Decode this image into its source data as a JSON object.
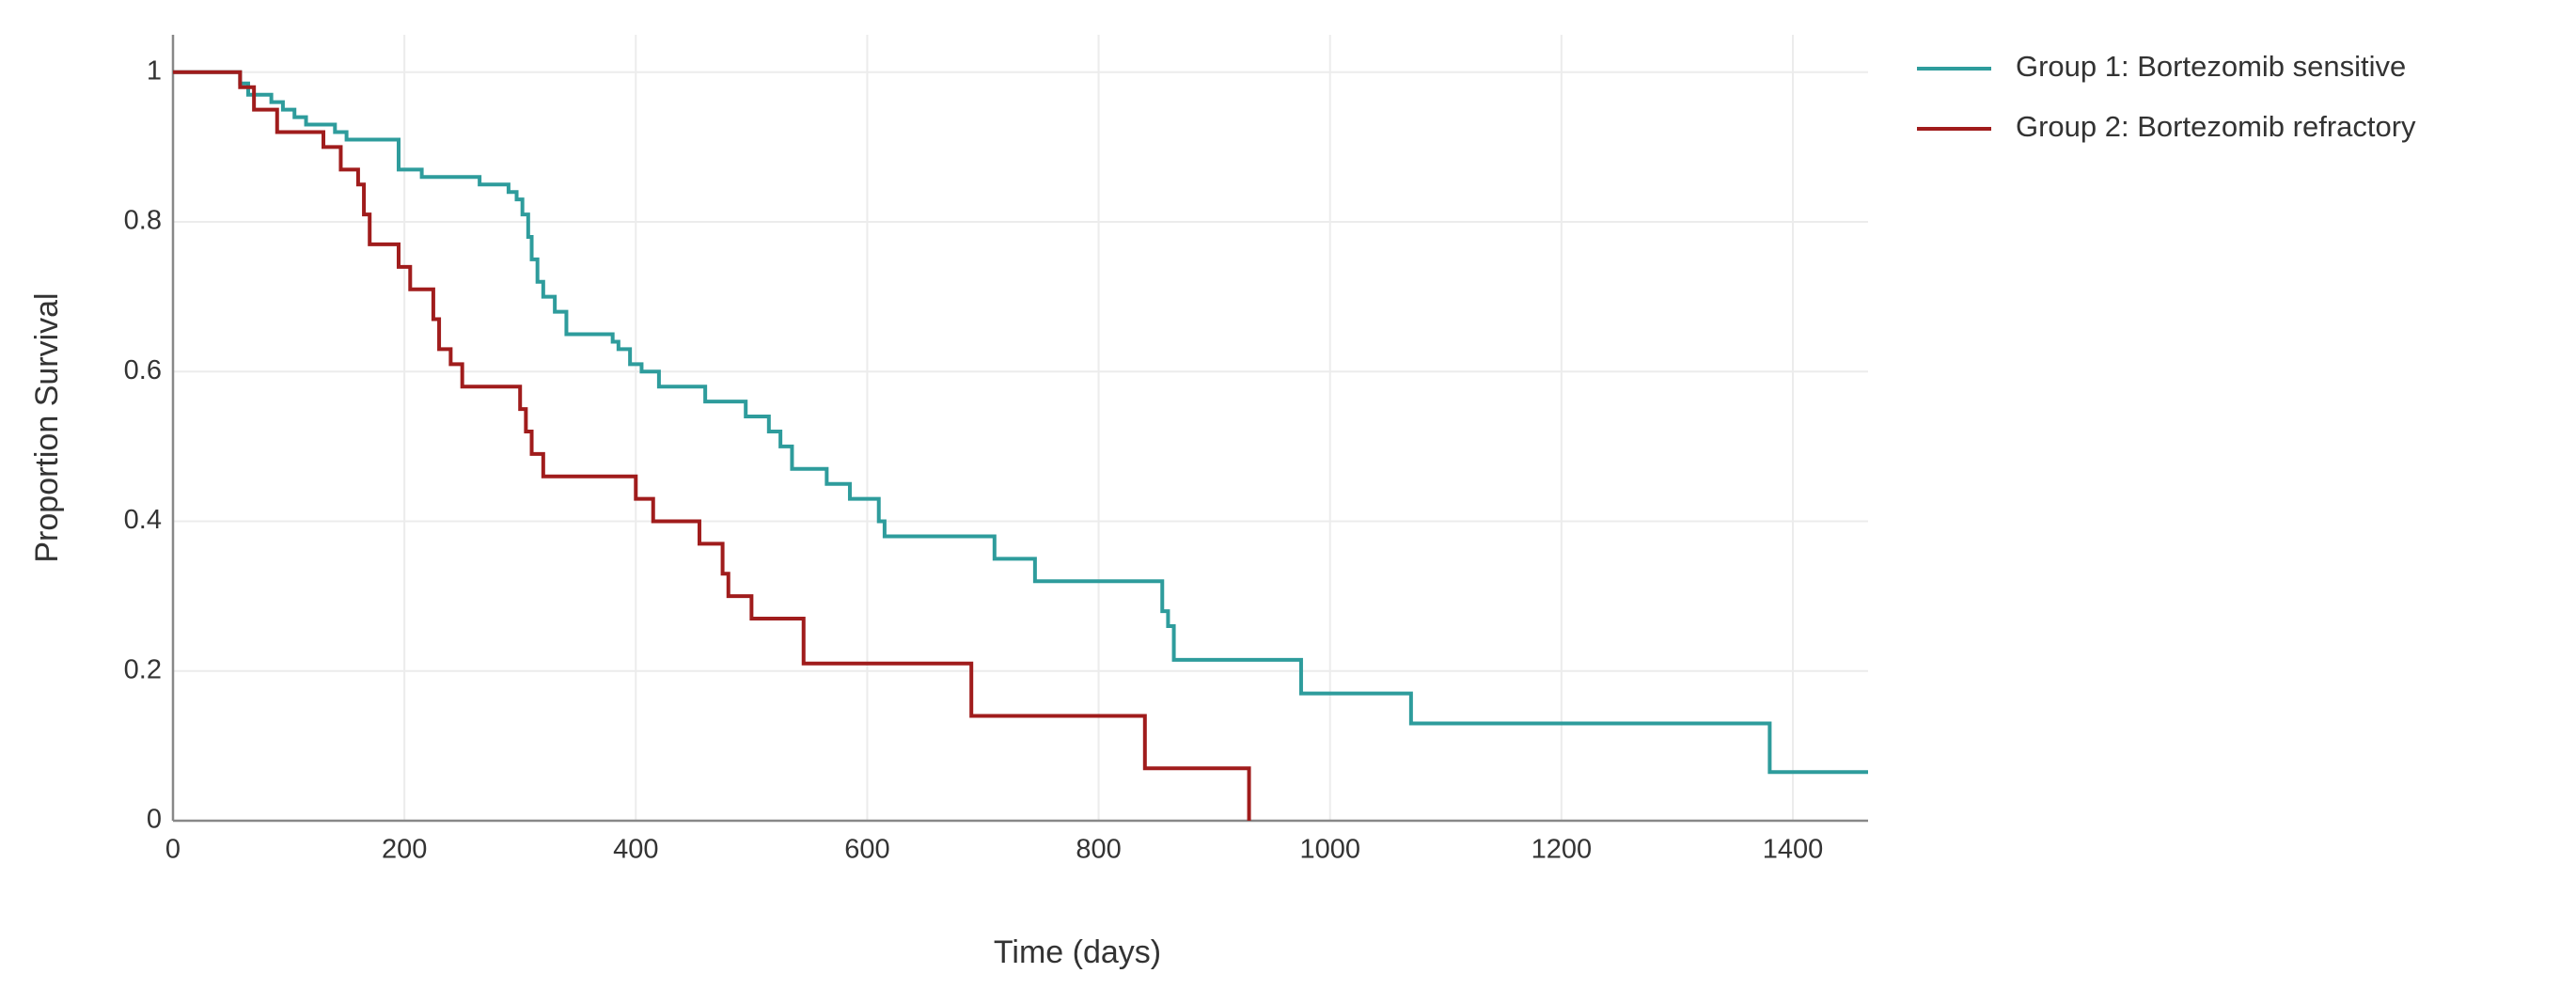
{
  "chart_data": {
    "type": "step",
    "x_label": "Time (days)",
    "y_label": "Proportion Survival",
    "xlim": [
      0,
      1465
    ],
    "ylim": [
      0,
      1.05
    ],
    "xticks": [
      0,
      200,
      400,
      600,
      800,
      1000,
      1200,
      1400
    ],
    "yticks": [
      0,
      0.2,
      0.4,
      0.6,
      0.8,
      1
    ],
    "grid": true,
    "legend": "right",
    "series": [
      {
        "name": "Group 1: Bortezomib sensitive",
        "color": "#2e9c9c",
        "x": [
          0,
          58,
          65,
          85,
          95,
          105,
          115,
          140,
          150,
          195,
          215,
          265,
          290,
          297,
          302,
          307,
          310,
          315,
          320,
          330,
          340,
          380,
          385,
          395,
          405,
          420,
          460,
          495,
          515,
          525,
          535,
          565,
          585,
          610,
          615,
          710,
          745,
          855,
          860,
          865,
          975,
          1070,
          1380,
          1465
        ],
        "values": [
          1,
          0.985,
          0.97,
          0.96,
          0.95,
          0.94,
          0.93,
          0.92,
          0.91,
          0.87,
          0.86,
          0.85,
          0.84,
          0.83,
          0.81,
          0.78,
          0.75,
          0.72,
          0.7,
          0.68,
          0.65,
          0.64,
          0.63,
          0.61,
          0.6,
          0.58,
          0.56,
          0.54,
          0.52,
          0.5,
          0.47,
          0.45,
          0.43,
          0.4,
          0.38,
          0.35,
          0.32,
          0.28,
          0.26,
          0.215,
          0.17,
          0.13,
          0.065,
          0.065
        ]
      },
      {
        "name": "Group 2: Bortezomib refractory",
        "color": "#a01c1c",
        "x": [
          0,
          58,
          70,
          90,
          130,
          145,
          160,
          165,
          170,
          195,
          205,
          225,
          230,
          240,
          250,
          300,
          305,
          310,
          320,
          400,
          415,
          455,
          475,
          480,
          500,
          545,
          690,
          840,
          930
        ],
        "values": [
          1,
          0.98,
          0.95,
          0.92,
          0.9,
          0.87,
          0.85,
          0.81,
          0.77,
          0.74,
          0.71,
          0.67,
          0.63,
          0.61,
          0.58,
          0.55,
          0.52,
          0.49,
          0.46,
          0.43,
          0.4,
          0.37,
          0.33,
          0.3,
          0.27,
          0.21,
          0.14,
          0.07,
          0
        ]
      }
    ]
  }
}
